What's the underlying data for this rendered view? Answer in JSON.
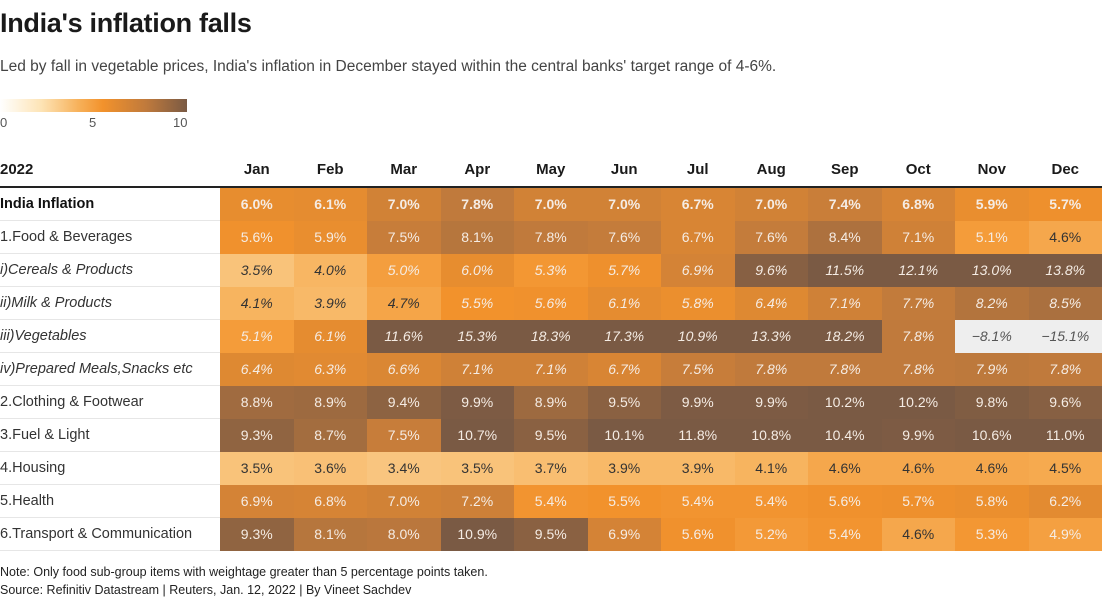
{
  "header": {
    "title": "India's inflation falls",
    "subtitle": "Led by fall in vegetable prices, India's inflation in December stayed within the central banks' target range of 4-6%."
  },
  "legend": {
    "ticks": [
      "0",
      "5",
      "10"
    ],
    "min": 0,
    "max": 10,
    "colors": [
      "#ffffff",
      "#fde4b6",
      "#f7b15a",
      "#f2922c",
      "#c07a3c",
      "#7a5a44"
    ]
  },
  "chart_data": {
    "type": "heatmap",
    "title": "India's inflation falls",
    "corner_label": "2022",
    "columns": [
      "Jan",
      "Feb",
      "Mar",
      "Apr",
      "May",
      "Jun",
      "Jul",
      "Aug",
      "Sep",
      "Oct",
      "Nov",
      "Dec"
    ],
    "rows": [
      {
        "label": "India Inflation",
        "style": "total",
        "values": [
          6.0,
          6.1,
          7.0,
          7.8,
          7.0,
          7.0,
          6.7,
          7.0,
          7.4,
          6.8,
          5.9,
          5.7
        ]
      },
      {
        "label": "1.Food & Beverages",
        "style": "main",
        "values": [
          5.6,
          5.9,
          7.5,
          8.1,
          7.8,
          7.6,
          6.7,
          7.6,
          8.4,
          7.1,
          5.1,
          4.6
        ]
      },
      {
        "label": "i)Cereals & Products",
        "style": "sub",
        "values": [
          3.5,
          4.0,
          5.0,
          6.0,
          5.3,
          5.7,
          6.9,
          9.6,
          11.5,
          12.1,
          13.0,
          13.8
        ]
      },
      {
        "label": "ii)Milk & Products",
        "style": "sub",
        "values": [
          4.1,
          3.9,
          4.7,
          5.5,
          5.6,
          6.1,
          5.8,
          6.4,
          7.1,
          7.7,
          8.2,
          8.5
        ]
      },
      {
        "label": "iii)Vegetables",
        "style": "sub",
        "values": [
          5.1,
          6.1,
          11.6,
          15.3,
          18.3,
          17.3,
          10.9,
          13.3,
          18.2,
          7.8,
          -8.1,
          -15.1
        ]
      },
      {
        "label": "iv)Prepared Meals,Snacks etc",
        "style": "sub",
        "values": [
          6.4,
          6.3,
          6.6,
          7.1,
          7.1,
          6.7,
          7.5,
          7.8,
          7.8,
          7.8,
          7.9,
          7.8
        ]
      },
      {
        "label": "2.Clothing & Footwear",
        "style": "main",
        "values": [
          8.8,
          8.9,
          9.4,
          9.9,
          8.9,
          9.5,
          9.9,
          9.9,
          10.2,
          10.2,
          9.8,
          9.6
        ]
      },
      {
        "label": "3.Fuel & Light",
        "style": "main",
        "values": [
          9.3,
          8.7,
          7.5,
          10.7,
          9.5,
          10.1,
          11.8,
          10.8,
          10.4,
          9.9,
          10.6,
          11.0
        ]
      },
      {
        "label": "4.Housing",
        "style": "main",
        "values": [
          3.5,
          3.6,
          3.4,
          3.5,
          3.7,
          3.9,
          3.9,
          4.1,
          4.6,
          4.6,
          4.6,
          4.5
        ]
      },
      {
        "label": "5.Health",
        "style": "main",
        "values": [
          6.9,
          6.8,
          7.0,
          7.2,
          5.4,
          5.5,
          5.4,
          5.4,
          5.6,
          5.7,
          5.8,
          6.2
        ]
      },
      {
        "label": "6.Transport & Communication",
        "style": "main",
        "values": [
          9.3,
          8.1,
          8.0,
          10.9,
          9.5,
          6.9,
          5.6,
          5.2,
          5.4,
          4.6,
          5.3,
          4.9
        ]
      }
    ],
    "value_suffix": "%",
    "color_scale": {
      "min": 0,
      "max": 10
    }
  },
  "footer": {
    "note": "Note: Only food sub-group items with weightage greater than 5 percentage points taken.",
    "source": "Source: Refinitiv Datastream | Reuters, Jan. 12, 2022 | By Vineet Sachdev"
  }
}
